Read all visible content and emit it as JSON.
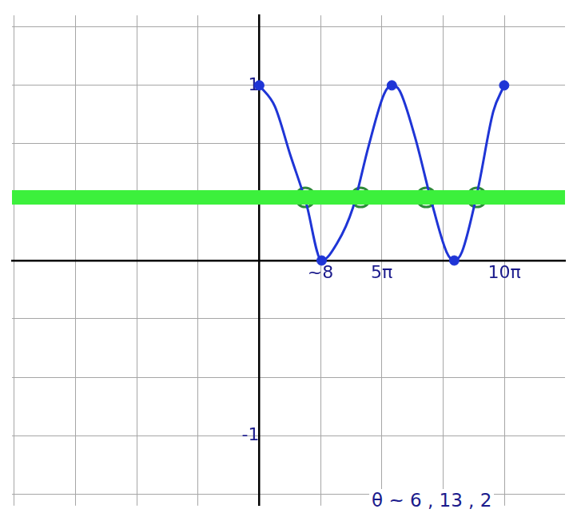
{
  "chart_data": {
    "type": "line",
    "xlim": [
      -31.7,
      39.2
    ],
    "ylim": [
      -1.4,
      1.4
    ],
    "xticks": [
      {
        "value": -31.416,
        "label": null
      },
      {
        "value": -23.562,
        "label": null
      },
      {
        "value": -15.708,
        "label": null
      },
      {
        "value": -7.854,
        "label": null
      },
      {
        "value": 0,
        "label": null
      },
      {
        "value": 7.854,
        "label": "~8"
      },
      {
        "value": 15.708,
        "label": "5π"
      },
      {
        "value": 23.562,
        "label": null
      },
      {
        "value": 31.416,
        "label": "10π"
      }
    ],
    "yticks": [
      {
        "value": -1.333,
        "label": null
      },
      -1,
      {
        "value": -0.667,
        "label": null
      },
      {
        "value": -0.333,
        "label": null
      },
      {
        "value": 0,
        "label": null
      },
      {
        "value": 0.333,
        "label": null
      },
      {
        "value": 0.667,
        "label": null
      },
      1,
      {
        "value": 1.333,
        "label": null
      }
    ],
    "grid": true,
    "series": [
      {
        "type": "line",
        "color": "#3cf03c",
        "line_style": "solid",
        "x": [
          -31.7,
          39.2
        ],
        "values": [
          0.36,
          0.36
        ]
      },
      {
        "type": "line",
        "color": "#1f35d6",
        "line_style": "solid",
        "x": [
          0,
          2,
          4,
          6,
          8,
          10,
          12,
          14,
          16,
          17,
          18,
          20,
          22,
          24,
          25,
          26,
          28,
          30,
          31.4
        ],
        "values": [
          1,
          0.88,
          0.6,
          0.33,
          0,
          0.1,
          0.3,
          0.65,
          0.95,
          1,
          0.97,
          0.7,
          0.35,
          0.05,
          0,
          0.05,
          0.4,
          0.85,
          1
        ]
      },
      {
        "type": "scatter",
        "color": "#1f35d6",
        "marker": "dot",
        "x": [
          0,
          8,
          17,
          25,
          31.4
        ],
        "values": [
          1,
          0,
          1,
          0,
          1
        ]
      },
      {
        "type": "scatter",
        "color": "#2e8b3a",
        "marker": "ring",
        "x": [
          5.9,
          13.0,
          21.4,
          27.9
        ],
        "values": [
          0.36,
          0.36,
          0.36,
          0.36
        ]
      }
    ],
    "annotations": [
      "θ ~ 6 , 13 , 2"
    ]
  }
}
